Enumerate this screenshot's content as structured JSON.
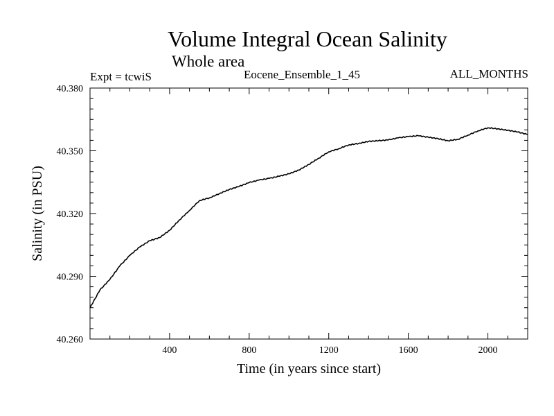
{
  "chart_data": {
    "type": "line",
    "title": "Volume Integral Ocean Salinity",
    "subtitle": "Whole area",
    "annotations": {
      "experiment": "Expt = tcwiS",
      "ensemble": "Eocene_Ensemble_1_45",
      "months": "ALL_MONTHS"
    },
    "xlabel": "Time (in years since start)",
    "ylabel": "Salinity (in PSU)",
    "xlim": [
      0,
      2200
    ],
    "ylim": [
      40.26,
      40.38
    ],
    "x_ticks": [
      {
        "value": 400,
        "label": "400"
      },
      {
        "value": 800,
        "label": "800"
      },
      {
        "value": 1200,
        "label": "1200"
      },
      {
        "value": 1600,
        "label": "1600"
      },
      {
        "value": 2000,
        "label": "2000"
      }
    ],
    "y_ticks": [
      {
        "value": 40.26,
        "label": "40.260"
      },
      {
        "value": 40.29,
        "label": "40.290"
      },
      {
        "value": 40.32,
        "label": "40.320"
      },
      {
        "value": 40.35,
        "label": "40.350"
      },
      {
        "value": 40.38,
        "label": "40.380"
      }
    ],
    "grid": false,
    "series": [
      {
        "color": "#000000",
        "x": [
          0,
          50,
          100,
          150,
          200,
          250,
          300,
          350,
          400,
          450,
          500,
          550,
          600,
          650,
          700,
          750,
          800,
          850,
          900,
          950,
          1000,
          1050,
          1100,
          1150,
          1200,
          1250,
          1300,
          1350,
          1400,
          1450,
          1500,
          1550,
          1600,
          1650,
          1700,
          1750,
          1800,
          1850,
          1900,
          1950,
          2000,
          2050,
          2100,
          2150,
          2200
        ],
        "y": [
          40.275,
          40.2835,
          40.2885,
          40.295,
          40.3,
          40.304,
          40.307,
          40.3085,
          40.312,
          40.317,
          40.3215,
          40.3262,
          40.3275,
          40.3295,
          40.3315,
          40.333,
          40.3348,
          40.336,
          40.3368,
          40.3378,
          40.339,
          40.3408,
          40.3435,
          40.3465,
          40.3495,
          40.351,
          40.3528,
          40.3535,
          40.3545,
          40.3548,
          40.3552,
          40.3562,
          40.3568,
          40.3572,
          40.3565,
          40.3558,
          40.3548,
          40.3555,
          40.3575,
          40.3595,
          40.361,
          40.3605,
          40.3598,
          40.359,
          40.3578
        ]
      }
    ]
  }
}
